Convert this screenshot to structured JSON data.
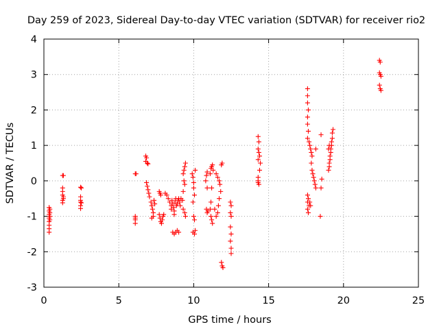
{
  "chart_data": {
    "type": "scatter",
    "title": "Day 259 of 2023, Sidereal Day-to-day VTEC variation (SDTVAR) for receiver rio2",
    "xlabel": "GPS time / hours",
    "ylabel": "SDTVAR / TECUs",
    "xlim": [
      0,
      25
    ],
    "ylim": [
      -3,
      4
    ],
    "xticks": [
      "0",
      "5",
      "10",
      "15",
      "20",
      "25"
    ],
    "yticks": [
      "-3",
      "-2",
      "-1",
      "0",
      "1",
      "2",
      "3",
      "4"
    ],
    "grid": true,
    "marker": "+",
    "series": [
      {
        "name": "SDTVAR",
        "color": "#ff0000",
        "points": [
          [
            0.35,
            -0.75
          ],
          [
            0.35,
            -0.85
          ],
          [
            0.35,
            -0.95
          ],
          [
            0.35,
            -1.05
          ],
          [
            0.35,
            -1.15
          ],
          [
            0.35,
            -1.25
          ],
          [
            0.35,
            -1.35
          ],
          [
            0.35,
            -1.45
          ],
          [
            0.4,
            -0.8
          ],
          [
            0.4,
            -0.9
          ],
          [
            0.4,
            -1.0
          ],
          [
            0.4,
            -1.1
          ],
          [
            1.25,
            0.15
          ],
          [
            1.3,
            0.15
          ],
          [
            1.25,
            -0.2
          ],
          [
            1.25,
            -0.3
          ],
          [
            1.25,
            -0.4
          ],
          [
            1.3,
            -0.45
          ],
          [
            1.3,
            -0.5
          ],
          [
            1.25,
            -0.55
          ],
          [
            1.25,
            -0.62
          ],
          [
            2.45,
            -0.18
          ],
          [
            2.5,
            -0.2
          ],
          [
            2.45,
            -0.45
          ],
          [
            2.45,
            -0.55
          ],
          [
            2.45,
            -0.6
          ],
          [
            2.5,
            -0.62
          ],
          [
            2.45,
            -0.7
          ],
          [
            2.45,
            -0.78
          ],
          [
            6.1,
            0.2
          ],
          [
            6.15,
            0.2
          ],
          [
            6.1,
            -1.0
          ],
          [
            6.1,
            -1.05
          ],
          [
            6.1,
            -1.1
          ],
          [
            6.1,
            -1.2
          ],
          [
            6.8,
            0.7
          ],
          [
            6.85,
            0.65
          ],
          [
            6.8,
            0.55
          ],
          [
            6.9,
            0.5
          ],
          [
            6.95,
            0.48
          ],
          [
            6.85,
            -0.05
          ],
          [
            6.9,
            -0.15
          ],
          [
            6.95,
            -0.25
          ],
          [
            7.0,
            -0.35
          ],
          [
            7.05,
            -0.45
          ],
          [
            7.15,
            -0.6
          ],
          [
            7.2,
            -0.7
          ],
          [
            7.25,
            -0.8
          ],
          [
            7.3,
            -0.9
          ],
          [
            7.3,
            -1.0
          ],
          [
            7.2,
            -1.05
          ],
          [
            7.35,
            -0.55
          ],
          [
            7.4,
            -0.65
          ],
          [
            7.7,
            -0.3
          ],
          [
            7.75,
            -0.35
          ],
          [
            7.8,
            -0.4
          ],
          [
            7.7,
            -0.95
          ],
          [
            7.75,
            -1.05
          ],
          [
            7.8,
            -1.15
          ],
          [
            7.85,
            -1.2
          ],
          [
            7.9,
            -1.1
          ],
          [
            7.95,
            -1.0
          ],
          [
            8.0,
            -0.95
          ],
          [
            8.1,
            -0.35
          ],
          [
            8.2,
            -0.4
          ],
          [
            8.3,
            -0.5
          ],
          [
            8.4,
            -0.6
          ],
          [
            8.5,
            -0.7
          ],
          [
            8.5,
            -0.8
          ],
          [
            8.55,
            -0.55
          ],
          [
            8.6,
            -0.65
          ],
          [
            8.65,
            -0.75
          ],
          [
            8.7,
            -0.85
          ],
          [
            8.75,
            -0.6
          ],
          [
            8.8,
            -0.5
          ],
          [
            8.85,
            -0.7
          ],
          [
            8.9,
            -0.65
          ],
          [
            8.95,
            -0.55
          ],
          [
            9.0,
            -0.5
          ],
          [
            9.05,
            -0.6
          ],
          [
            9.1,
            -0.7
          ],
          [
            9.15,
            -0.5
          ],
          [
            8.7,
            -0.95
          ],
          [
            8.6,
            -1.45
          ],
          [
            8.7,
            -1.5
          ],
          [
            8.8,
            -1.45
          ],
          [
            8.9,
            -1.4
          ],
          [
            9.0,
            -1.45
          ],
          [
            9.3,
            0.2
          ],
          [
            9.35,
            0.3
          ],
          [
            9.4,
            0.4
          ],
          [
            9.45,
            0.5
          ],
          [
            9.35,
            0.0
          ],
          [
            9.4,
            -0.1
          ],
          [
            9.3,
            -0.3
          ],
          [
            9.25,
            -0.55
          ],
          [
            9.3,
            -0.8
          ],
          [
            9.4,
            -0.9
          ],
          [
            9.45,
            -1.0
          ],
          [
            9.9,
            0.2
          ],
          [
            9.95,
            0.1
          ],
          [
            10.0,
            -0.05
          ],
          [
            10.0,
            -0.2
          ],
          [
            10.05,
            -0.4
          ],
          [
            9.95,
            -0.6
          ],
          [
            10.0,
            -1.0
          ],
          [
            10.05,
            -1.1
          ],
          [
            9.95,
            -1.45
          ],
          [
            10.05,
            -1.5
          ],
          [
            10.1,
            -1.4
          ],
          [
            10.1,
            0.3
          ],
          [
            10.8,
            0.0
          ],
          [
            10.85,
            0.15
          ],
          [
            10.9,
            0.25
          ],
          [
            10.9,
            -0.2
          ],
          [
            10.85,
            -0.8
          ],
          [
            10.9,
            -0.9
          ],
          [
            10.95,
            -0.85
          ],
          [
            11.1,
            0.2
          ],
          [
            11.15,
            0.35
          ],
          [
            11.2,
            0.4
          ],
          [
            11.25,
            0.45
          ],
          [
            11.3,
            0.3
          ],
          [
            11.2,
            -0.2
          ],
          [
            11.15,
            -0.6
          ],
          [
            11.1,
            -0.8
          ],
          [
            11.15,
            -1.0
          ],
          [
            11.2,
            -1.1
          ],
          [
            11.25,
            -1.2
          ],
          [
            11.5,
            0.2
          ],
          [
            11.6,
            0.1
          ],
          [
            11.7,
            0.0
          ],
          [
            11.75,
            -0.1
          ],
          [
            11.8,
            -0.3
          ],
          [
            11.7,
            -0.5
          ],
          [
            11.65,
            -0.7
          ],
          [
            11.6,
            -0.9
          ],
          [
            11.5,
            -1.0
          ],
          [
            11.4,
            -0.8
          ],
          [
            11.85,
            0.45
          ],
          [
            11.9,
            0.5
          ],
          [
            11.85,
            -2.3
          ],
          [
            11.9,
            -2.4
          ],
          [
            11.95,
            -2.45
          ],
          [
            12.45,
            -0.6
          ],
          [
            12.5,
            -0.7
          ],
          [
            12.45,
            -0.9
          ],
          [
            12.5,
            -1.0
          ],
          [
            12.45,
            -1.3
          ],
          [
            12.5,
            -1.5
          ],
          [
            12.45,
            -1.7
          ],
          [
            12.5,
            -1.9
          ],
          [
            12.5,
            -2.05
          ],
          [
            14.3,
            1.25
          ],
          [
            14.35,
            1.1
          ],
          [
            14.3,
            0.9
          ],
          [
            14.35,
            0.8
          ],
          [
            14.3,
            0.6
          ],
          [
            14.4,
            0.7
          ],
          [
            14.45,
            0.5
          ],
          [
            14.4,
            0.3
          ],
          [
            14.3,
            0.1
          ],
          [
            14.3,
            0.0
          ],
          [
            14.35,
            -0.1
          ],
          [
            14.3,
            -0.05
          ],
          [
            17.6,
            2.6
          ],
          [
            17.6,
            2.4
          ],
          [
            17.6,
            2.2
          ],
          [
            17.65,
            2.0
          ],
          [
            17.6,
            1.8
          ],
          [
            17.6,
            1.6
          ],
          [
            17.65,
            1.4
          ],
          [
            17.6,
            1.2
          ],
          [
            17.7,
            1.1
          ],
          [
            17.75,
            1.0
          ],
          [
            17.8,
            0.9
          ],
          [
            17.85,
            0.8
          ],
          [
            17.9,
            0.7
          ],
          [
            17.85,
            0.5
          ],
          [
            17.9,
            0.3
          ],
          [
            17.95,
            0.2
          ],
          [
            18.0,
            0.1
          ],
          [
            18.05,
            0.0
          ],
          [
            18.1,
            -0.1
          ],
          [
            18.15,
            -0.2
          ],
          [
            17.6,
            -0.4
          ],
          [
            17.65,
            -0.5
          ],
          [
            17.6,
            -0.6
          ],
          [
            17.7,
            -0.7
          ],
          [
            17.6,
            -0.8
          ],
          [
            17.65,
            -0.9
          ],
          [
            17.75,
            -0.6
          ],
          [
            17.8,
            -0.7
          ],
          [
            18.15,
            0.9
          ],
          [
            18.5,
            1.3
          ],
          [
            18.55,
            0.05
          ],
          [
            18.5,
            -0.2
          ],
          [
            18.45,
            -1.0
          ],
          [
            19.0,
            0.3
          ],
          [
            19.05,
            0.4
          ],
          [
            19.05,
            0.5
          ],
          [
            19.1,
            0.6
          ],
          [
            19.1,
            0.7
          ],
          [
            19.15,
            0.8
          ],
          [
            19.15,
            0.9
          ],
          [
            19.2,
            1.0
          ],
          [
            19.2,
            1.1
          ],
          [
            19.25,
            1.2
          ],
          [
            19.25,
            1.35
          ],
          [
            19.3,
            1.45
          ],
          [
            19.0,
            0.9
          ],
          [
            19.05,
            1.0
          ],
          [
            22.4,
            3.4
          ],
          [
            22.45,
            3.35
          ],
          [
            22.4,
            3.05
          ],
          [
            22.45,
            3.0
          ],
          [
            22.5,
            2.95
          ],
          [
            22.4,
            2.7
          ],
          [
            22.45,
            2.6
          ],
          [
            22.5,
            2.55
          ]
        ]
      }
    ]
  }
}
